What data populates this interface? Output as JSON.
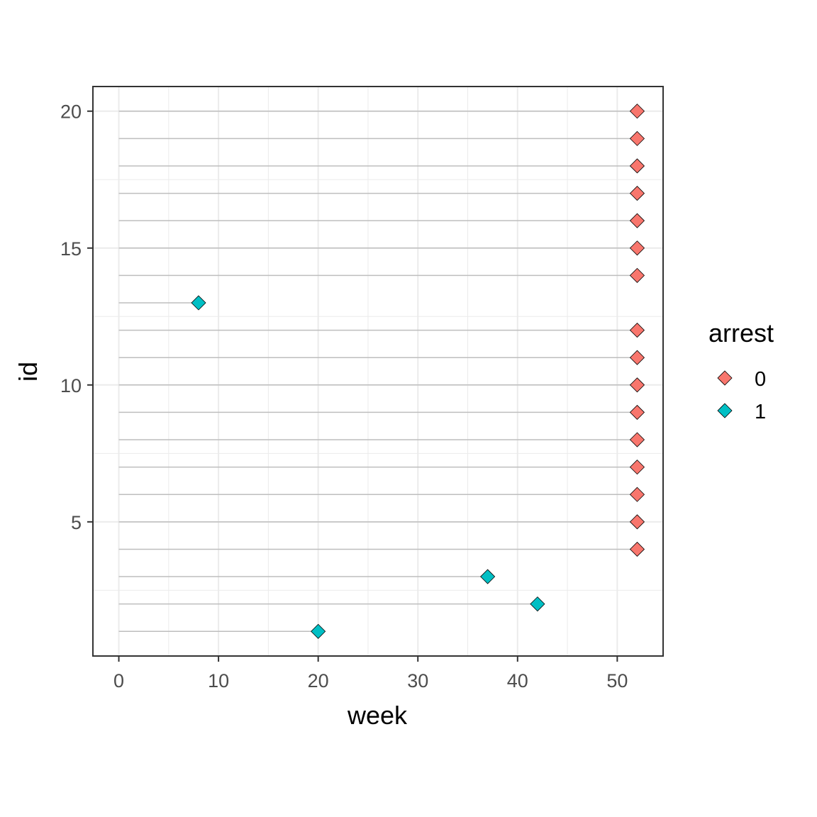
{
  "chart_data": {
    "type": "scatter",
    "xlabel": "week",
    "ylabel": "id",
    "xlim": [
      -2.6,
      54.6
    ],
    "ylim": [
      0.1,
      20.9
    ],
    "x_ticks": [
      0,
      10,
      20,
      30,
      40,
      50
    ],
    "y_ticks": [
      5,
      10,
      15,
      20
    ],
    "grid": true,
    "legend": {
      "title": "arrest",
      "placement": "right",
      "entries": [
        {
          "label": "0",
          "color": "#F8766D"
        },
        {
          "label": "1",
          "color": "#00BFC4"
        }
      ]
    },
    "points": [
      {
        "id": 1,
        "week": 20,
        "arrest": "1"
      },
      {
        "id": 2,
        "week": 42,
        "arrest": "1"
      },
      {
        "id": 3,
        "week": 37,
        "arrest": "1"
      },
      {
        "id": 4,
        "week": 52,
        "arrest": "0"
      },
      {
        "id": 5,
        "week": 52,
        "arrest": "0"
      },
      {
        "id": 6,
        "week": 52,
        "arrest": "0"
      },
      {
        "id": 7,
        "week": 52,
        "arrest": "0"
      },
      {
        "id": 8,
        "week": 52,
        "arrest": "0"
      },
      {
        "id": 9,
        "week": 52,
        "arrest": "0"
      },
      {
        "id": 10,
        "week": 52,
        "arrest": "0"
      },
      {
        "id": 11,
        "week": 52,
        "arrest": "0"
      },
      {
        "id": 12,
        "week": 52,
        "arrest": "0"
      },
      {
        "id": 13,
        "week": 8,
        "arrest": "1"
      },
      {
        "id": 14,
        "week": 52,
        "arrest": "0"
      },
      {
        "id": 15,
        "week": 52,
        "arrest": "0"
      },
      {
        "id": 16,
        "week": 52,
        "arrest": "0"
      },
      {
        "id": 17,
        "week": 52,
        "arrest": "0"
      },
      {
        "id": 18,
        "week": 52,
        "arrest": "0"
      },
      {
        "id": 19,
        "week": 52,
        "arrest": "0"
      },
      {
        "id": 20,
        "week": 52,
        "arrest": "0"
      }
    ]
  }
}
